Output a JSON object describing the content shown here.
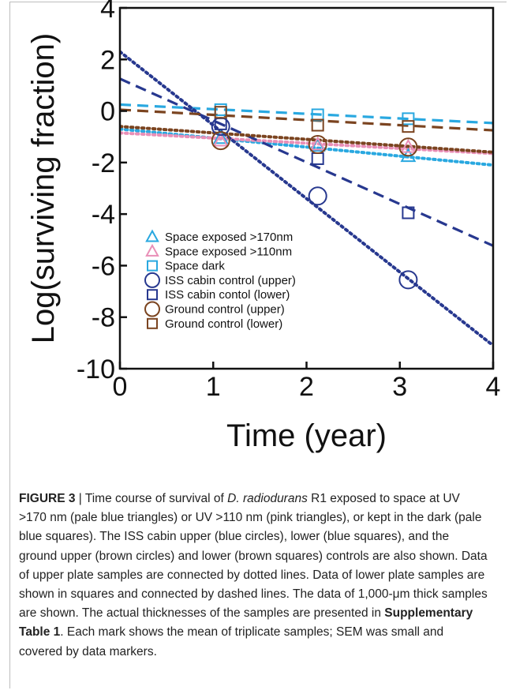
{
  "chart_data": {
    "type": "scatter",
    "xlabel": "Time (year)",
    "ylabel": "Log(surviving fraction)",
    "xlim": [
      0,
      4
    ],
    "ylim": [
      -10,
      4
    ],
    "xticks": [
      "0",
      "1",
      "2",
      "3",
      "4"
    ],
    "yticks": [
      "4",
      "2",
      "0",
      "-2",
      "-4",
      "-6",
      "-8",
      "-10"
    ],
    "legend_position": "lower-left",
    "series": [
      {
        "name": "Space exposed >170nm",
        "marker": "triangle",
        "color": "#29a8e0",
        "line": "dotted",
        "x": [
          1.08,
          2.12,
          3.09
        ],
        "y": [
          -1.05,
          -1.35,
          -1.75
        ],
        "fit": [
          -0.7,
          -0.35
        ]
      },
      {
        "name": "Space exposed >110nm",
        "marker": "triangle",
        "color": "#e98fb7",
        "line": "dotted",
        "x": [
          1.08,
          2.12,
          3.09
        ],
        "y": [
          -1.15,
          -1.3,
          -1.4
        ],
        "fit": [
          -0.85,
          -0.2
        ]
      },
      {
        "name": "Space dark",
        "marker": "square",
        "color": "#29a8e0",
        "line": "dashed",
        "x": [
          1.08,
          2.12,
          3.09
        ],
        "y": [
          0.05,
          -0.15,
          -0.3
        ],
        "fit": [
          0.25,
          -0.18
        ]
      },
      {
        "name": "ISS cabin control (upper)",
        "marker": "circle",
        "color": "#27388f",
        "line": "dotted",
        "x": [
          1.08,
          2.12,
          3.09
        ],
        "y": [
          -0.6,
          -3.3,
          -6.55
        ],
        "fit": [
          2.3,
          -2.85
        ]
      },
      {
        "name": "ISS cabin contol (lower)",
        "marker": "square",
        "color": "#27388f",
        "line": "dashed",
        "x": [
          1.08,
          2.12,
          3.09
        ],
        "y": [
          -0.5,
          -1.85,
          -3.95
        ],
        "fit": [
          1.25,
          -1.62
        ]
      },
      {
        "name": "Ground control (upper)",
        "marker": "circle",
        "color": "#7b4420",
        "line": "dotted",
        "x": [
          1.08,
          2.12,
          3.09
        ],
        "y": [
          -1.15,
          -1.3,
          -1.4
        ],
        "fit": [
          -0.6,
          -0.25
        ]
      },
      {
        "name": "Ground control (lower)",
        "marker": "square",
        "color": "#7b4420",
        "line": "dashed",
        "x": [
          1.08,
          2.12,
          3.09
        ],
        "y": [
          -0.05,
          -0.55,
          -0.6
        ],
        "fit": [
          0.05,
          -0.2
        ]
      }
    ]
  },
  "caption": {
    "label": "FIGURE 3",
    "sep": " | ",
    "t1": "Time course of survival of ",
    "species": "D. radiodurans",
    "t2": " R1 exposed to space at UV >170 nm (pale blue triangles) or UV >110 nm (pink triangles), or kept in the dark (pale blue squares). The ISS cabin upper (blue circles), lower (blue squares), and the ground upper (brown circles) and lower (brown squares) controls are also shown. Data of upper plate samples are connected by dotted lines. Data of lower plate samples are shown in squares and connected by dashed lines. The data of 1,000-μm thick samples are shown. The actual thicknesses of the samples are presented in ",
    "table_ref": "Supplementary Table 1",
    "t3": ". Each mark shows the mean of triplicate samples; SEM was small and covered by data markers."
  }
}
